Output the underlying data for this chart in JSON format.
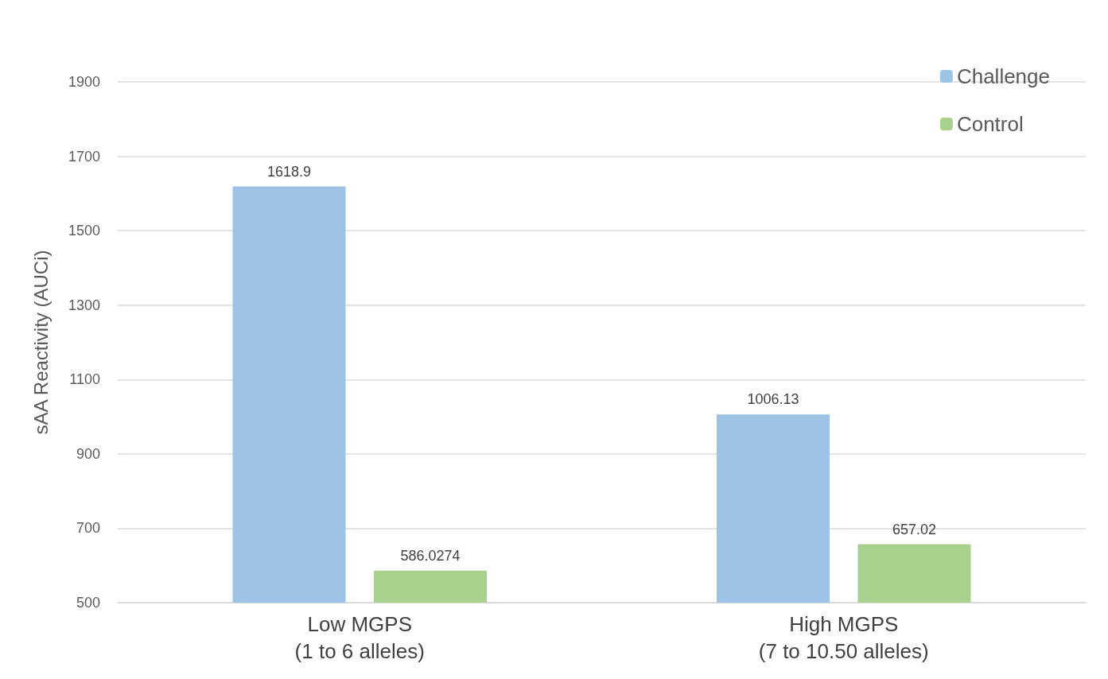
{
  "chart_data": {
    "type": "bar",
    "ylabel": "sAA Reactivity (AUCi)",
    "categories": [
      "Low MGPS\n(1 to 6 alleles)",
      "High MGPS\n(7 to 10.50 alleles)"
    ],
    "series": [
      {
        "name": "Challenge",
        "color": "#9dc3e6",
        "values": [
          1618.9,
          1006.13
        ]
      },
      {
        "name": "Control",
        "color": "#a9d18e",
        "values": [
          586.0274,
          657.02
        ]
      }
    ],
    "ylim": [
      500,
      1900
    ],
    "yticks": [
      500,
      700,
      900,
      1100,
      1300,
      1500,
      1700,
      1900
    ],
    "grid": "y",
    "legend": "top right",
    "data_labels": true
  }
}
